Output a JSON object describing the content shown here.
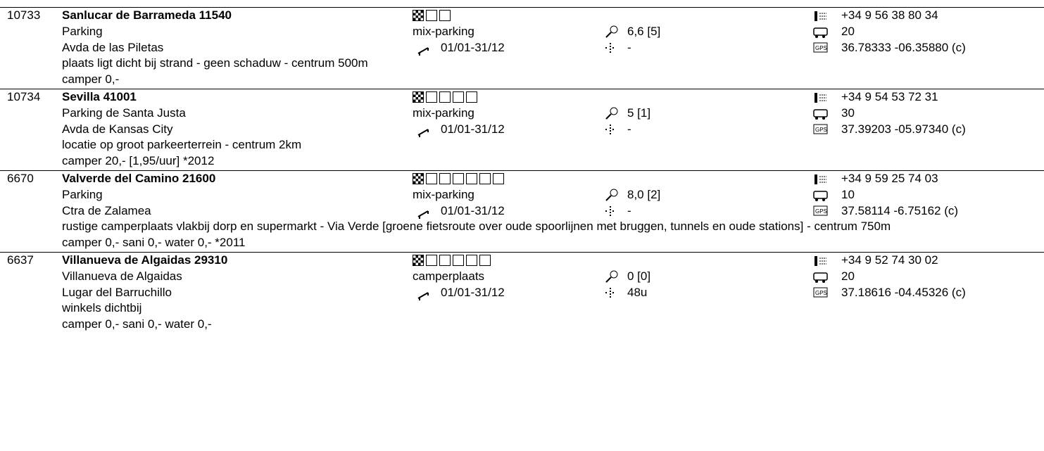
{
  "entries": [
    {
      "id": "10733",
      "name": "Sanlucar de Barrameda 11540",
      "place": "Parking",
      "street": "Avda de las Piletas",
      "description": "plaats ligt dicht bij strand - geen schaduw - centrum 500m",
      "price": "camper 0,-",
      "type": "mix-parking",
      "dates": "01/01-31/12",
      "rating": "6,6  [5]",
      "hours": "-",
      "phone": "+34 9 56 38 80 34",
      "places": "20",
      "gps": "36.78333 -06.35880 (c)"
    },
    {
      "id": "10734",
      "name": "Sevilla 41001",
      "place": "Parking de Santa Justa",
      "street": "Avda de Kansas City",
      "description": "locatie op groot parkeerterrein - centrum 2km",
      "price": "camper 20,- [1,95/uur] *2012",
      "type": "mix-parking",
      "dates": "01/01-31/12",
      "rating": "5  [1]",
      "hours": "-",
      "phone": "+34 9 54 53 72 31",
      "places": "30",
      "gps": "37.39203 -05.97340 (c)"
    },
    {
      "id": "6670",
      "name": "Valverde del Camino 21600",
      "place": "Parking",
      "street": "Ctra de Zalamea",
      "description": "rustige camperplaats vlakbij dorp en supermarkt - Via Verde [groene fietsroute over oude spoorlijnen met bruggen, tunnels en oude stations] - centrum 750m",
      "price": "camper 0,- sani 0,- water 0,- *2011",
      "type": "mix-parking",
      "dates": "01/01-31/12",
      "rating": "8,0  [2]",
      "hours": "-",
      "phone": "+34 9 59 25 74 03",
      "places": "10",
      "gps": "37.58114 -6.75162 (c)"
    },
    {
      "id": "6637",
      "name": "Villanueva de Algaidas 29310",
      "place": "Villanueva de Algaidas",
      "street": "Lugar del Barruchillo",
      "description": "winkels dichtbij",
      "price": "camper 0,- sani 0,- water 0,-",
      "type": "camperplaats",
      "dates": "01/01-31/12",
      "rating": "0  [0]",
      "hours": "48u",
      "phone": "+34 9 52 74 30 02",
      "places": "20",
      "gps": "37.18616 -04.45326 (c)"
    }
  ]
}
